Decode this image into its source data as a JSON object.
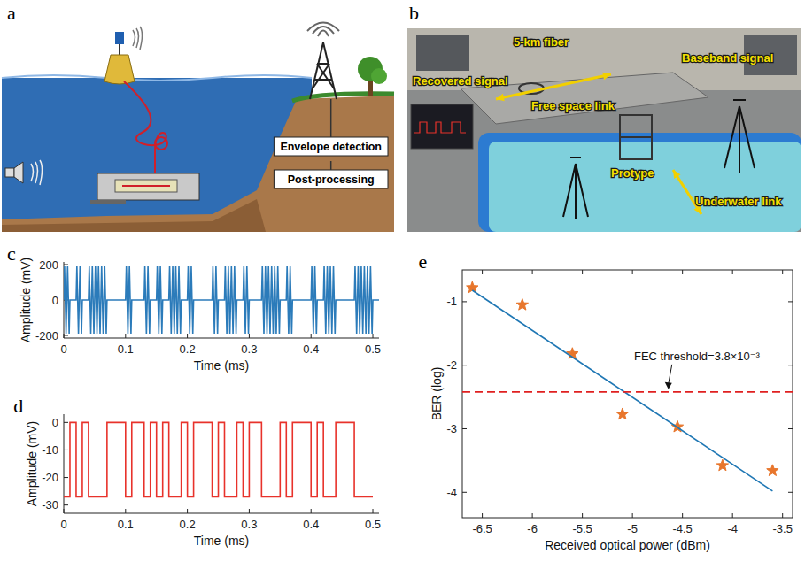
{
  "diagram": {
    "panel_label": "a",
    "boxes": [
      "Envelope detection",
      "Post-processing"
    ]
  },
  "photo": {
    "panel_label": "b",
    "labels": [
      "Recovered signal",
      "5-km fiber",
      "Free space link",
      "Protype",
      "Baseband signal",
      "Underwater link"
    ]
  },
  "chart_data": [
    {
      "panel_label": "c",
      "type": "line",
      "x_label": "Time (ms)",
      "y_label": "Amplitude (mV)",
      "color": "#2b7bba",
      "x": [
        0,
        0.00125,
        0.00375,
        0.00625,
        0.00875,
        0.01,
        0.02,
        0.02125,
        0.02375,
        0.02625,
        0.02875,
        0.03,
        0.04,
        0.04125,
        0.04375,
        0.04625,
        0.04875,
        0.05125,
        0.05375,
        0.05625,
        0.05875,
        0.06125,
        0.06375,
        0.06625,
        0.06875,
        0.07,
        0.1,
        0.10125,
        0.10375,
        0.10625,
        0.10875,
        0.11,
        0.13,
        0.13125,
        0.13375,
        0.13625,
        0.13875,
        0.14,
        0.15,
        0.15125,
        0.15375,
        0.15625,
        0.15875,
        0.16,
        0.17,
        0.17125,
        0.17375,
        0.17625,
        0.17875,
        0.18125,
        0.18375,
        0.18625,
        0.18875,
        0.19,
        0.2,
        0.20125,
        0.20375,
        0.20625,
        0.20875,
        0.21,
        0.24,
        0.24125,
        0.24375,
        0.24625,
        0.24875,
        0.25,
        0.26,
        0.26125,
        0.26375,
        0.26625,
        0.26875,
        0.27125,
        0.27375,
        0.27625,
        0.27875,
        0.28,
        0.29,
        0.29125,
        0.29375,
        0.29625,
        0.29875,
        0.3,
        0.32,
        0.32125,
        0.32375,
        0.32625,
        0.32875,
        0.33125,
        0.33375,
        0.33625,
        0.33875,
        0.34125,
        0.34375,
        0.34625,
        0.34875,
        0.35,
        0.36,
        0.36125,
        0.36375,
        0.36625,
        0.36875,
        0.37,
        0.4,
        0.40125,
        0.40375,
        0.40625,
        0.40875,
        0.41,
        0.42,
        0.42125,
        0.42375,
        0.42625,
        0.42875,
        0.43125,
        0.43375,
        0.43625,
        0.43875,
        0.44,
        0.47,
        0.47125,
        0.47375,
        0.47625,
        0.47875,
        0.48125,
        0.48375,
        0.48625,
        0.48875,
        0.49125,
        0.49375,
        0.49625,
        0.49875,
        0.5,
        0.51
      ],
      "values": [
        0,
        190,
        -190,
        190,
        -190,
        0,
        0,
        190,
        -190,
        190,
        -190,
        0,
        0,
        190,
        -190,
        190,
        -190,
        190,
        -190,
        190,
        -190,
        190,
        -190,
        190,
        -190,
        0,
        0,
        190,
        -190,
        190,
        -190,
        0,
        0,
        190,
        -190,
        190,
        -190,
        0,
        0,
        190,
        -190,
        190,
        -190,
        0,
        0,
        190,
        -190,
        190,
        -190,
        190,
        -190,
        190,
        -190,
        0,
        0,
        190,
        -190,
        190,
        -190,
        0,
        0,
        190,
        -190,
        190,
        -190,
        0,
        0,
        190,
        -190,
        190,
        -190,
        190,
        -190,
        190,
        -190,
        0,
        0,
        190,
        -190,
        190,
        -190,
        0,
        0,
        190,
        -190,
        190,
        -190,
        190,
        -190,
        190,
        -190,
        190,
        -190,
        190,
        -190,
        0,
        0,
        190,
        -190,
        190,
        -190,
        0,
        0,
        190,
        -190,
        190,
        -190,
        0,
        0,
        190,
        -190,
        190,
        -190,
        190,
        -190,
        190,
        -190,
        0,
        0,
        190,
        -190,
        190,
        -190,
        190,
        -190,
        190,
        -190,
        190,
        -190,
        190,
        -190,
        0,
        0
      ],
      "xlim": [
        0,
        0.51
      ],
      "ylim": [
        -215,
        215
      ],
      "xticks": [
        0,
        0.1,
        0.2,
        0.3,
        0.4,
        0.5
      ],
      "yticks": [
        -200,
        0,
        200
      ]
    },
    {
      "panel_label": "d",
      "type": "line",
      "x_label": "Time (ms)",
      "y_label": "Amplitude (mV)",
      "color": "#e8322b",
      "x": [
        0,
        0.01,
        0.01,
        0.02,
        0.02,
        0.03,
        0.03,
        0.04,
        0.04,
        0.07,
        0.07,
        0.1,
        0.1,
        0.11,
        0.11,
        0.13,
        0.13,
        0.14,
        0.14,
        0.15,
        0.15,
        0.16,
        0.16,
        0.17,
        0.17,
        0.19,
        0.19,
        0.2,
        0.2,
        0.21,
        0.21,
        0.24,
        0.24,
        0.25,
        0.25,
        0.26,
        0.26,
        0.28,
        0.28,
        0.29,
        0.29,
        0.3,
        0.3,
        0.32,
        0.32,
        0.35,
        0.35,
        0.36,
        0.36,
        0.37,
        0.37,
        0.4,
        0.4,
        0.41,
        0.41,
        0.42,
        0.42,
        0.44,
        0.44,
        0.47,
        0.47,
        0.5
      ],
      "values": [
        -27,
        -27,
        0,
        0,
        -27,
        -27,
        0,
        0,
        -27,
        -27,
        0,
        0,
        -27,
        -27,
        0,
        0,
        -27,
        -27,
        0,
        0,
        -27,
        -27,
        0,
        0,
        -27,
        -27,
        0,
        0,
        -27,
        -27,
        0,
        0,
        -27,
        -27,
        0,
        0,
        -27,
        -27,
        0,
        0,
        -27,
        -27,
        0,
        0,
        -27,
        -27,
        0,
        0,
        -27,
        -27,
        0,
        0,
        -27,
        -27,
        0,
        0,
        -27,
        -27,
        0,
        0,
        -27,
        -27
      ],
      "xlim": [
        0,
        0.51
      ],
      "ylim": [
        -33,
        3
      ],
      "xticks": [
        0,
        0.1,
        0.2,
        0.3,
        0.4,
        0.5
      ],
      "yticks": [
        -30,
        -20,
        -10,
        0
      ]
    },
    {
      "panel_label": "e",
      "type": "scatter",
      "x_label": "Received optical power (dBm)",
      "y_label": "BER (log)",
      "grid": false,
      "annotation": "FEC threshold=3.8×10⁻³",
      "series": [
        {
          "type": "scatter",
          "marker": "star",
          "color": "#e8762c",
          "x": [
            -6.6,
            -6.1,
            -5.6,
            -5.1,
            -4.55,
            -4.1,
            -3.6
          ],
          "values": [
            -0.78,
            -1.05,
            -1.82,
            -2.77,
            -2.97,
            -3.58,
            -3.66
          ]
        },
        {
          "type": "line",
          "line_style": "solid",
          "color": "#1f77b4",
          "x": [
            -6.6,
            -3.6
          ],
          "values": [
            -0.82,
            -3.98
          ]
        },
        {
          "type": "line",
          "line_style": "dashed",
          "color": "#e02020",
          "x": [
            -6.7,
            -3.4
          ],
          "values": [
            -2.42,
            -2.42
          ]
        }
      ],
      "xlim": [
        -6.7,
        -3.4
      ],
      "ylim": [
        -4.4,
        -0.5
      ],
      "xticks": [
        -6.5,
        -6,
        -5.5,
        -5,
        -4.5,
        -4,
        -3.5
      ],
      "yticks": [
        -4,
        -3,
        -2,
        -1
      ]
    }
  ]
}
